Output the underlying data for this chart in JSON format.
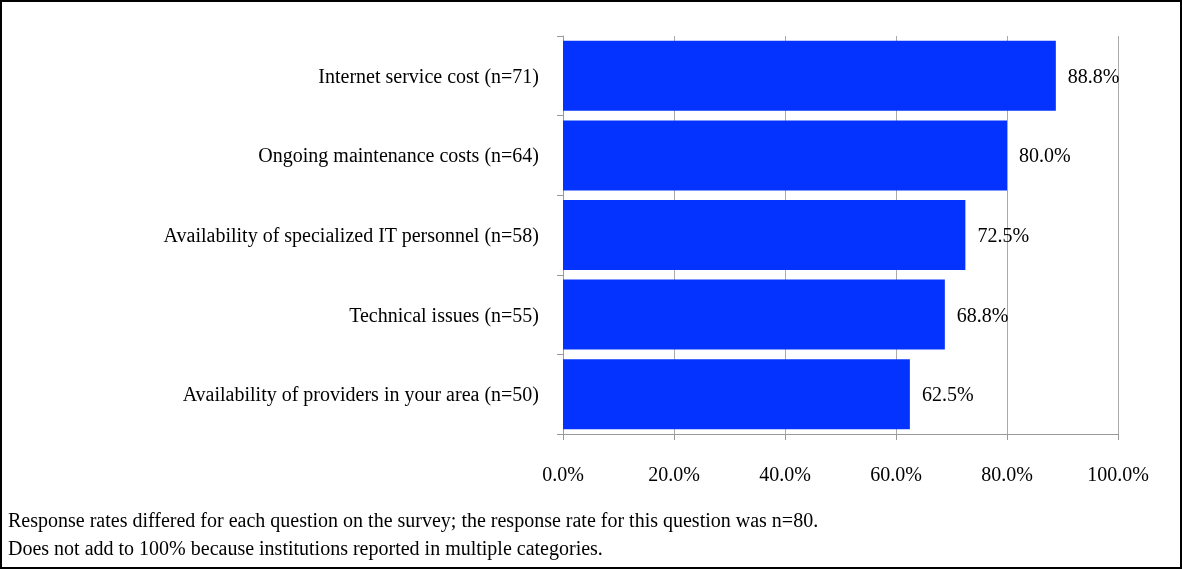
{
  "chart_data": {
    "type": "bar",
    "orientation": "horizontal",
    "categories": [
      "Internet service cost (n=71)",
      "Ongoing maintenance costs (n=64)",
      "Availability of specialized IT personnel (n=58)",
      "Technical issues (n=55)",
      "Availability of providers in your area (n=50)"
    ],
    "values": [
      88.8,
      80.0,
      72.5,
      68.8,
      62.5
    ],
    "color": "#0433ff",
    "value_labels": [
      "88.8%",
      "80.0%",
      "72.5%",
      "68.8%",
      "62.5%"
    ],
    "xlim": [
      0,
      100
    ],
    "xticks": [
      {
        "value": 0,
        "label": "0.0%"
      },
      {
        "value": 20,
        "label": "20.0%"
      },
      {
        "value": 40,
        "label": "40.0%"
      },
      {
        "value": 60,
        "label": "60.0%"
      },
      {
        "value": 80,
        "label": "80.0%"
      },
      {
        "value": 100,
        "label": "100.0%"
      }
    ],
    "grid": "x",
    "annotations": [
      "Response rates differed for each question on the survey; the response rate for this question was n=80.",
      "Does not add to 100% because institutions reported in multiple categories."
    ]
  }
}
